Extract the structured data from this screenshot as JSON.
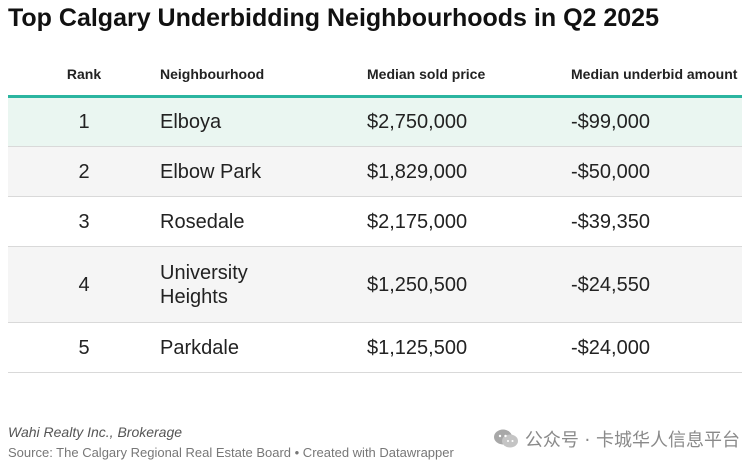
{
  "title": "Top Calgary Underbidding Neighbourhoods in Q2 2025",
  "columns": [
    "Rank",
    "Neighbourhood",
    "Median sold price",
    "Median underbid amount"
  ],
  "chart_data": {
    "type": "table",
    "title": "Top Calgary Underbidding Neighbourhoods in Q2 2025",
    "columns": [
      "Rank",
      "Neighbourhood",
      "Median sold price",
      "Median underbid amount"
    ],
    "rows": [
      {
        "rank": "1",
        "neighbourhood": "Elboya",
        "price": "$2,750,000",
        "underbid": "-$99,000"
      },
      {
        "rank": "2",
        "neighbourhood": "Elbow Park",
        "price": "$1,829,000",
        "underbid": "-$50,000"
      },
      {
        "rank": "3",
        "neighbourhood": "Rosedale",
        "price": "$2,175,000",
        "underbid": "-$39,350"
      },
      {
        "rank": "4",
        "neighbourhood": "University Heights",
        "price": "$1,250,500",
        "underbid": "-$24,550"
      },
      {
        "rank": "5",
        "neighbourhood": "Parkdale",
        "price": "$1,125,500",
        "underbid": "-$24,000"
      }
    ]
  },
  "footer": {
    "credit": "Wahi Realty Inc., Brokerage",
    "source": "Source: The Calgary Regional Real Estate Board • Created with Datawrapper"
  },
  "watermark": {
    "text": "公众号 · 卡城华人信息平台",
    "icon": "wechat-icon"
  },
  "colors": {
    "accent": "#2bb5a0",
    "highlight_row": "#eaf6f1",
    "alt_row": "#f5f5f5"
  }
}
